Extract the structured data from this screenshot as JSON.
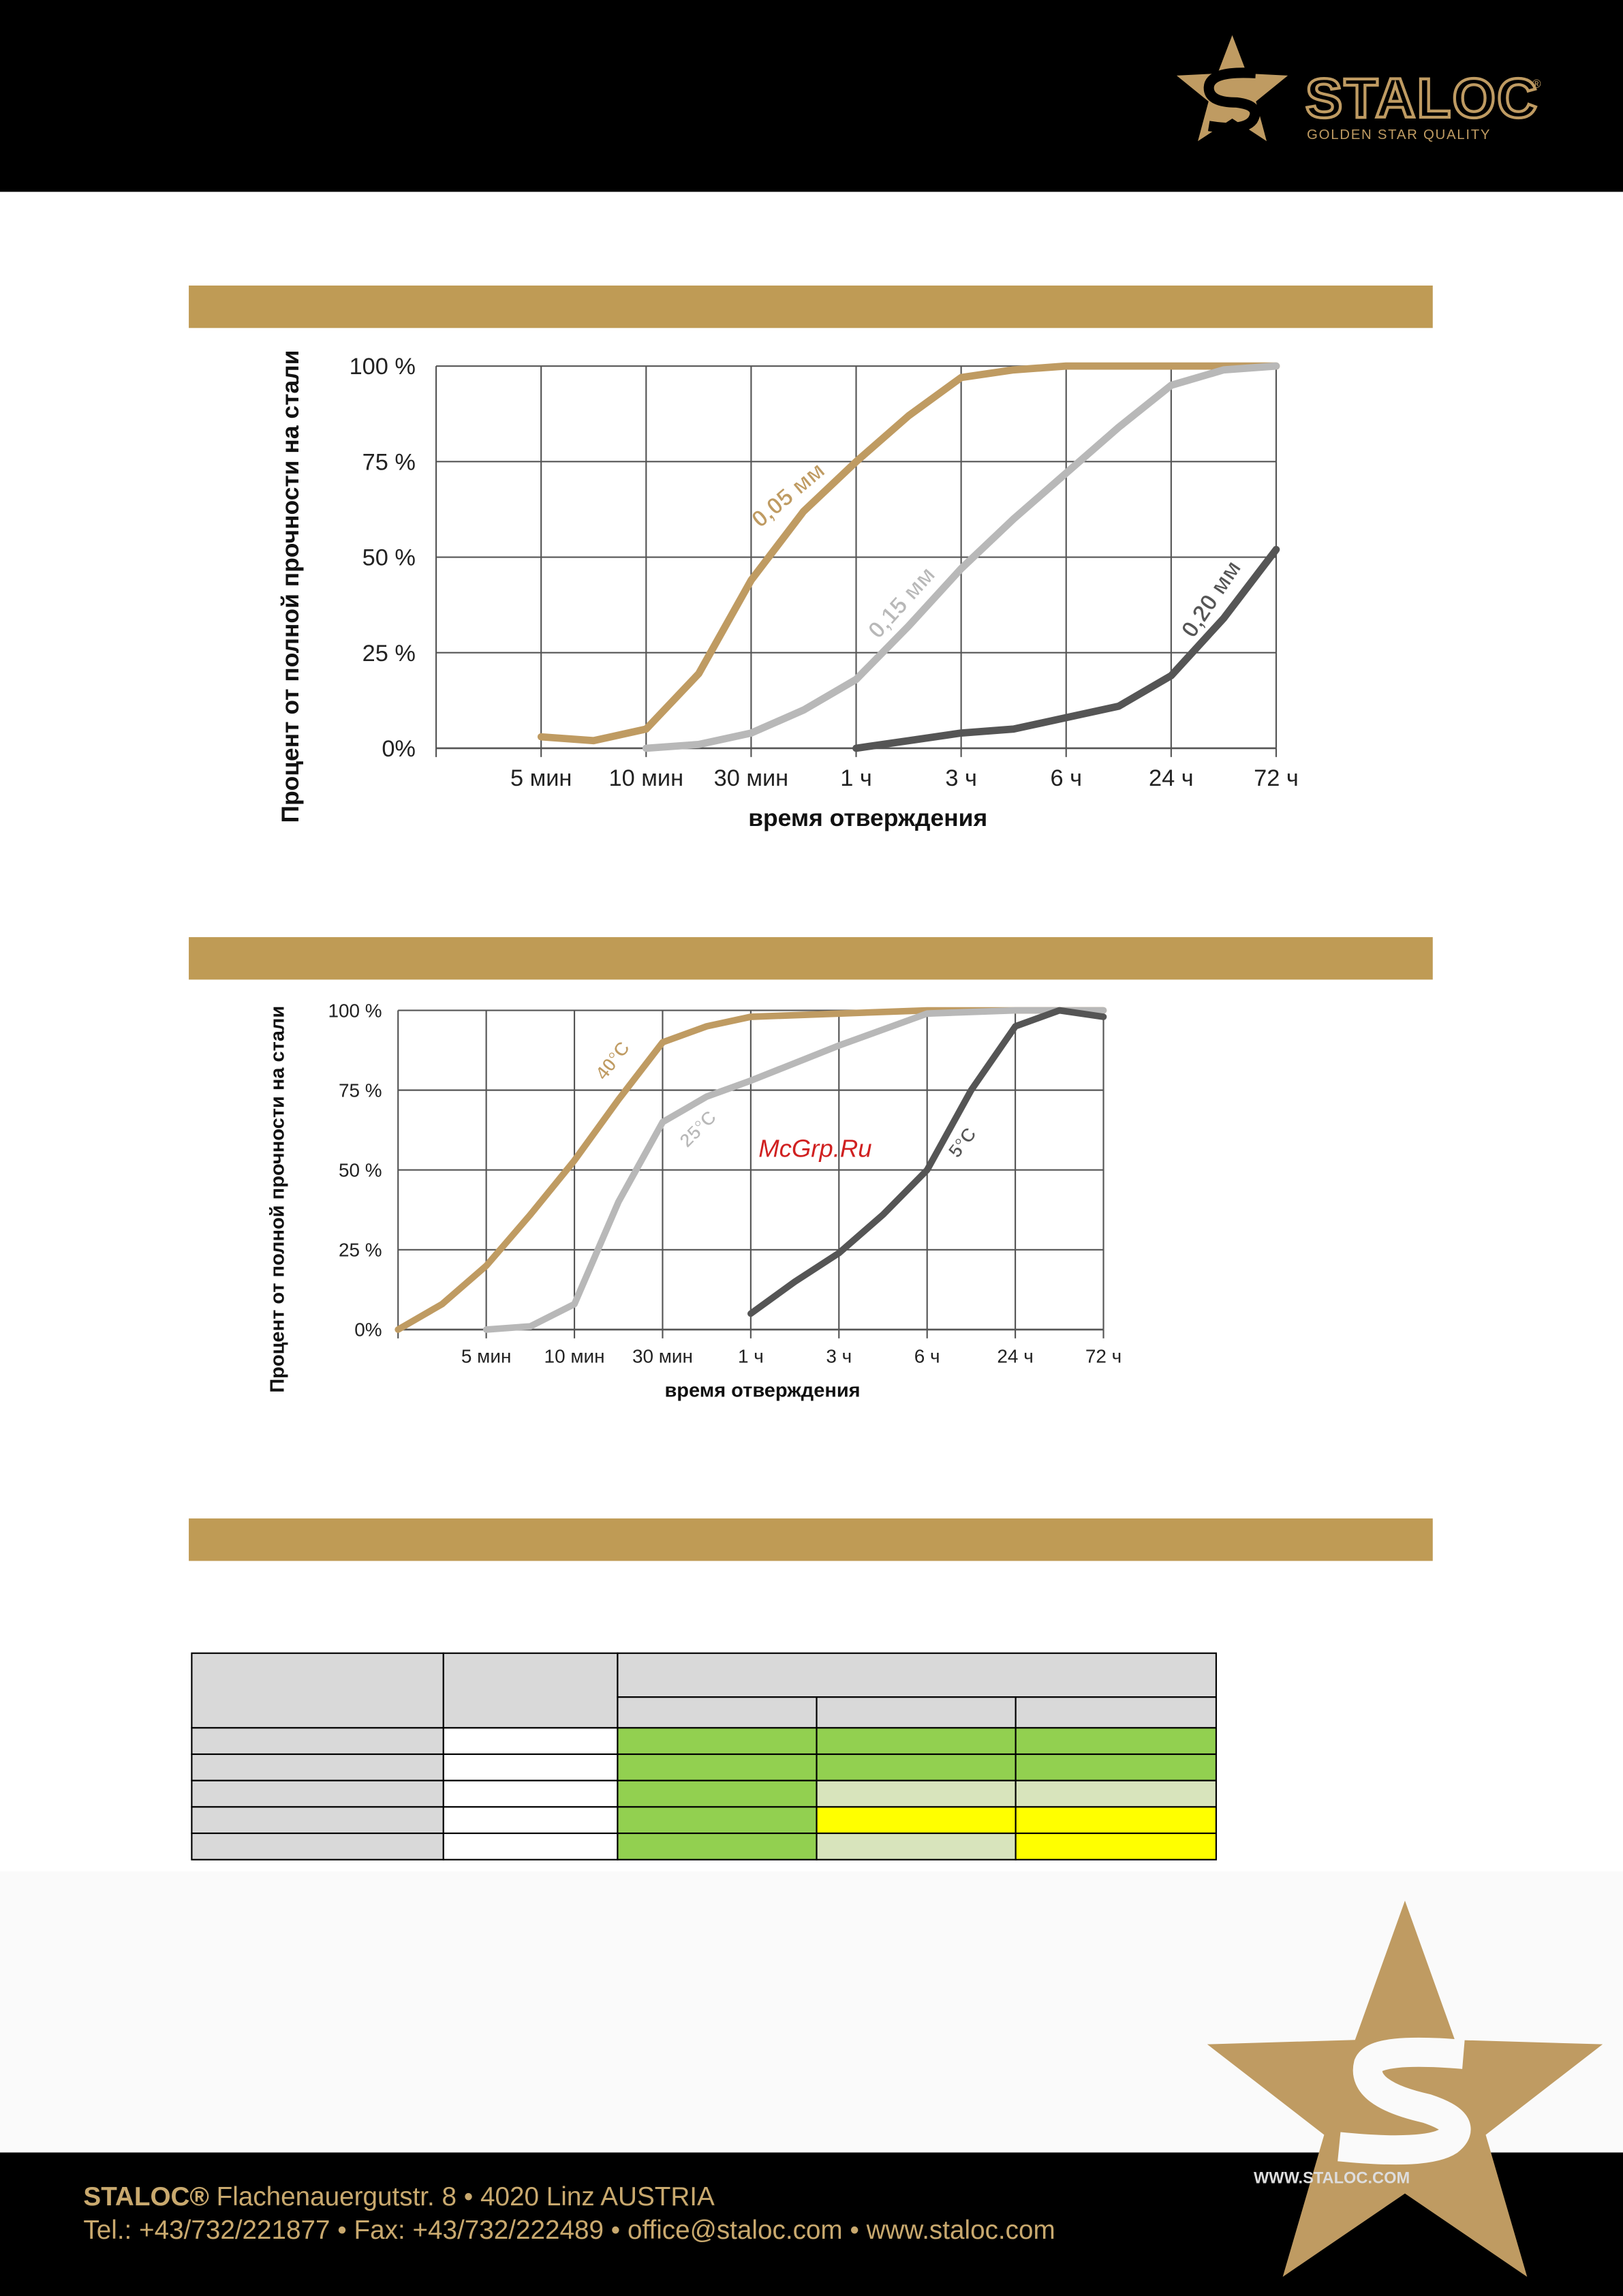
{
  "header": {
    "brand": "STALOC",
    "registered": "®",
    "tagline": "GOLDEN STAR QUALITY"
  },
  "chart_data": [
    {
      "type": "line",
      "y_label": "Процент от полной прочности на стали",
      "x_label": "время отверждения",
      "xlim": [
        0,
        8
      ],
      "xticks": [
        {
          "value": 1,
          "label": "5 мин"
        },
        {
          "value": 2,
          "label": "10 мин"
        },
        {
          "value": 3,
          "label": "30 мин"
        },
        {
          "value": 4,
          "label": "1 ч"
        },
        {
          "value": 5,
          "label": "3 ч"
        },
        {
          "value": 6,
          "label": "6 ч"
        },
        {
          "value": 7,
          "label": "24 ч"
        },
        {
          "value": 8,
          "label": "72 ч"
        }
      ],
      "ylim": [
        0,
        100
      ],
      "yticks": [
        {
          "value": 0,
          "label": "0%"
        },
        {
          "value": 25,
          "label": "25 %"
        },
        {
          "value": 50,
          "label": "50 %"
        },
        {
          "value": 75,
          "label": "75 %"
        },
        {
          "value": 100,
          "label": "100 %"
        }
      ],
      "grid": true,
      "series": [
        {
          "name": "0,05 мм",
          "color": "#bf9b62",
          "x": [
            1,
            1.5,
            2,
            2.5,
            3,
            3.5,
            4,
            4.5,
            5,
            5.5,
            6,
            7,
            8
          ],
          "values": [
            3,
            2,
            5,
            19.5,
            44,
            62,
            75,
            87,
            97,
            99,
            100,
            100,
            100
          ]
        },
        {
          "name": "0,15 мм",
          "color": "#b8b8b8",
          "x": [
            2,
            2.5,
            3,
            3.5,
            4,
            4.5,
            5,
            5.5,
            6,
            6.5,
            7,
            7.5,
            8
          ],
          "values": [
            0,
            1,
            4,
            10,
            18,
            32,
            47,
            60,
            72,
            84,
            95,
            99,
            100
          ]
        },
        {
          "name": "0,20 мм",
          "color": "#555555",
          "x": [
            4,
            4.5,
            5,
            5.5,
            6,
            6.5,
            7,
            7.5,
            8
          ],
          "values": [
            0,
            2,
            4,
            5,
            8,
            11,
            19,
            34,
            52
          ]
        }
      ]
    },
    {
      "type": "line",
      "y_label": "Процент от полной прочности на стали",
      "x_label": "время отверждения",
      "xlim": [
        0,
        8
      ],
      "xticks": [
        {
          "value": 1,
          "label": "5 мин"
        },
        {
          "value": 2,
          "label": "10 мин"
        },
        {
          "value": 3,
          "label": "30 мин"
        },
        {
          "value": 4,
          "label": "1 ч"
        },
        {
          "value": 5,
          "label": "3 ч"
        },
        {
          "value": 6,
          "label": "6 ч"
        },
        {
          "value": 7,
          "label": "24 ч"
        },
        {
          "value": 8,
          "label": "72 ч"
        }
      ],
      "ylim": [
        0,
        100
      ],
      "yticks": [
        {
          "value": 0,
          "label": "0%"
        },
        {
          "value": 25,
          "label": "25 %"
        },
        {
          "value": 50,
          "label": "50 %"
        },
        {
          "value": 75,
          "label": "75 %"
        },
        {
          "value": 100,
          "label": "100 %"
        }
      ],
      "grid": true,
      "series": [
        {
          "name": "40°C",
          "color": "#bf9b62",
          "x": [
            0,
            0.5,
            1,
            1.5,
            2,
            2.5,
            3,
            3.5,
            4,
            5,
            6,
            8
          ],
          "values": [
            0,
            8,
            20,
            36,
            53,
            72,
            90,
            95,
            98,
            99,
            100,
            100
          ]
        },
        {
          "name": "25°C",
          "color": "#b8b8b8",
          "x": [
            1,
            1.5,
            2,
            2.5,
            3,
            3.5,
            4,
            5,
            6,
            7,
            8
          ],
          "values": [
            0,
            1,
            8,
            40,
            65,
            73,
            78,
            89,
            99,
            100,
            100
          ]
        },
        {
          "name": "5°C",
          "color": "#555555",
          "x": [
            4,
            4.5,
            5,
            5.5,
            6,
            6.5,
            7,
            7.5,
            8
          ],
          "values": [
            5,
            15,
            24,
            36,
            50,
            75,
            95,
            100,
            98
          ]
        }
      ]
    }
  ],
  "watermark": "McGrp.Ru",
  "footer": {
    "company": "STALOC®",
    "address": " Flachenauergutstr. 8 • 4020 Linz AUSTRIA",
    "contact": "Tel.: +43/732/221877 • Fax: +43/732/222489 • office@staloc.com • www.staloc.com",
    "website_badge": "WWW.STALOC.COM"
  }
}
